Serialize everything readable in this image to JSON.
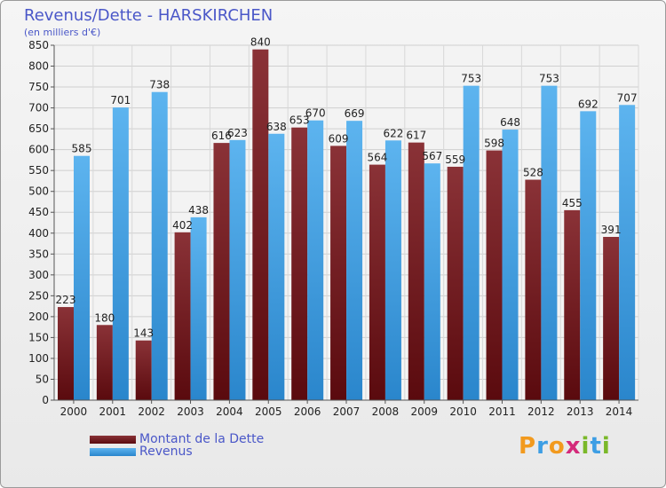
{
  "chart_data": {
    "type": "bar",
    "title": "Revenus/Dette - HARSKIRCHEN",
    "subtitle": "(en milliers d'€)",
    "xlabel": "",
    "ylabel": "",
    "ylim": [
      0,
      850
    ],
    "yticks": [
      0,
      50,
      100,
      150,
      200,
      250,
      300,
      350,
      400,
      450,
      500,
      550,
      600,
      650,
      700,
      750,
      800,
      850
    ],
    "grid": true,
    "categories": [
      "2000",
      "2001",
      "2002",
      "2003",
      "2004",
      "2005",
      "2006",
      "2007",
      "2008",
      "2009",
      "2010",
      "2011",
      "2012",
      "2013",
      "2014"
    ],
    "series": [
      {
        "name": "Montant de la Dette",
        "color": "#7a1a1e",
        "values": [
          223,
          180,
          143,
          402,
          616,
          840,
          653,
          609,
          564,
          617,
          559,
          598,
          528,
          455,
          391
        ]
      },
      {
        "name": "Revenus",
        "color": "#3d9ee4",
        "values": [
          585,
          701,
          738,
          438,
          623,
          638,
          670,
          669,
          622,
          567,
          753,
          648,
          753,
          692,
          707
        ]
      }
    ],
    "legend": "bottom-left"
  },
  "logo": {
    "letters": [
      "P",
      "r",
      "o",
      "x",
      "i",
      "t",
      "i"
    ],
    "colors": [
      "#f29a1e",
      "#3d9ee4",
      "#f29a1e",
      "#d42a7a",
      "#7ab829",
      "#3d9ee4",
      "#7ab829"
    ]
  }
}
